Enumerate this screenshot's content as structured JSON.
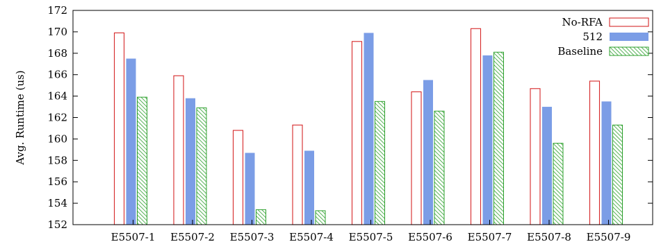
{
  "chart_data": {
    "type": "bar",
    "title": "",
    "xlabel": "",
    "ylabel": "Avg. Runtime (us)",
    "ylim": [
      152,
      172
    ],
    "yticks": [
      152,
      154,
      156,
      158,
      160,
      162,
      164,
      166,
      168,
      170,
      172
    ],
    "categories": [
      "E5507-1",
      "E5507-2",
      "E5507-3",
      "E5507-4",
      "E5507-5",
      "E5507-6",
      "E5507-7",
      "E5507-8",
      "E5507-9"
    ],
    "series": [
      {
        "name": "No-RFA",
        "style": "outline",
        "color": "#d62728",
        "values": [
          169.9,
          165.9,
          160.8,
          161.3,
          169.1,
          164.4,
          170.3,
          164.7,
          165.4
        ]
      },
      {
        "name": "512",
        "style": "solid",
        "color": "#7b9de6",
        "values": [
          167.5,
          163.8,
          158.7,
          158.9,
          169.9,
          165.5,
          167.8,
          163.0,
          163.5
        ]
      },
      {
        "name": "Baseline",
        "style": "hatched",
        "color": "#2ca02c",
        "values": [
          163.9,
          162.9,
          153.4,
          153.3,
          163.5,
          162.6,
          168.1,
          159.6,
          161.3
        ]
      }
    ],
    "grid": false,
    "legend_position": "top-right"
  }
}
